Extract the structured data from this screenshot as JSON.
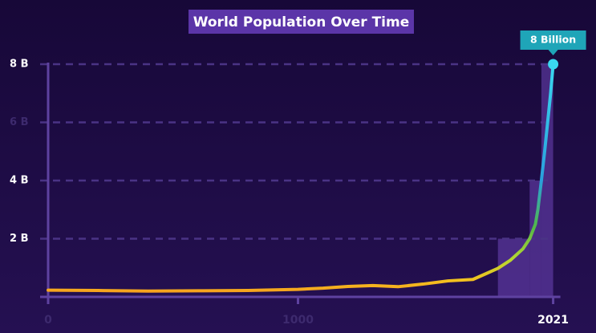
{
  "chart_data": {
    "type": "line",
    "title": "World Population Over Time",
    "x": [
      0,
      200,
      400,
      600,
      800,
      1000,
      1100,
      1200,
      1300,
      1400,
      1500,
      1600,
      1700,
      1750,
      1800,
      1850,
      1900,
      1927,
      1950,
      1960,
      1974,
      1987,
      1999,
      2011,
      2021
    ],
    "values": [
      0.23,
      0.22,
      0.2,
      0.21,
      0.22,
      0.26,
      0.3,
      0.36,
      0.39,
      0.35,
      0.44,
      0.55,
      0.6,
      0.79,
      0.98,
      1.26,
      1.65,
      2.0,
      2.5,
      3.0,
      4.0,
      5.0,
      6.0,
      7.0,
      8.0
    ],
    "bands": [
      {
        "start": 1800,
        "end": 1927,
        "value": 2
      },
      {
        "start": 1927,
        "end": 1974,
        "value": 4
      },
      {
        "start": 1974,
        "end": 2021,
        "value": 8
      }
    ],
    "annotation": "8 Billion",
    "xlim": [
      -30,
      2050
    ],
    "ylim": [
      0,
      8
    ],
    "xticks": [
      0,
      1000,
      2021
    ],
    "yticks": [
      {
        "value": 2,
        "label": "2 B"
      },
      {
        "value": 4,
        "label": "4 B"
      },
      {
        "value": 6,
        "label": "6 B"
      },
      {
        "value": 8,
        "label": "8 B"
      }
    ],
    "grid": true
  }
}
